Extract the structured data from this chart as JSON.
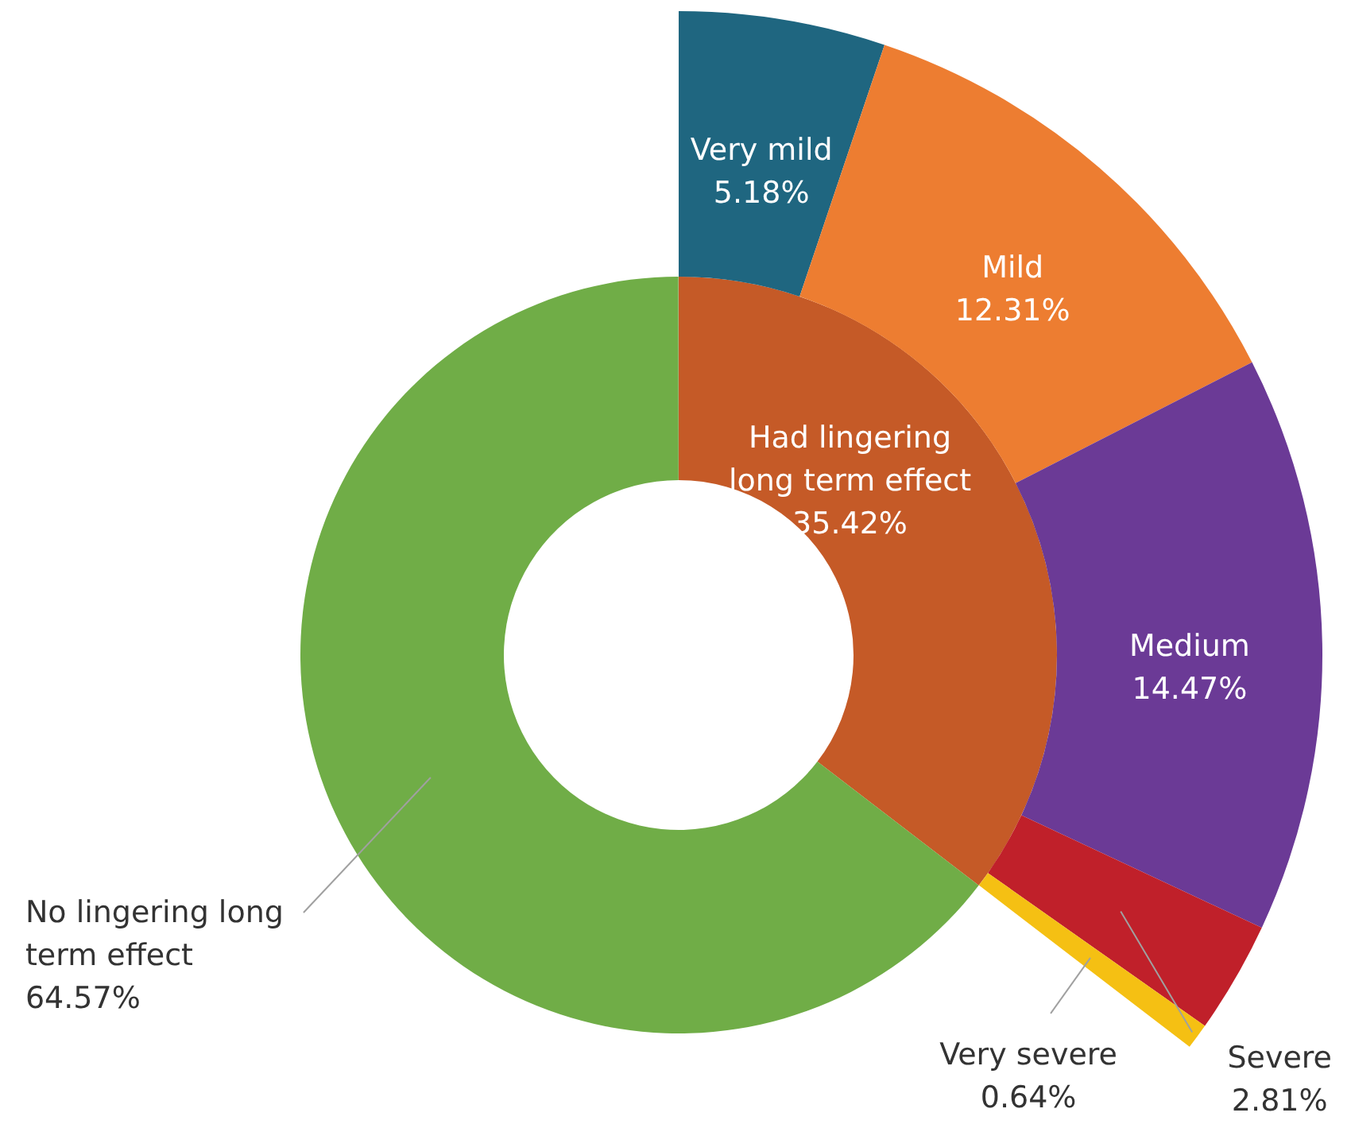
{
  "chart_data": [
    {
      "type": "donut",
      "categories": [
        "Had lingering long term effect",
        "No lingering long term effect"
      ],
      "values": [
        35.42,
        64.57
      ],
      "value_labels": [
        "35.42%",
        "64.57%"
      ],
      "colors": [
        "#c55a27",
        "#70ad47"
      ]
    },
    {
      "type": "donut",
      "categories": [
        "Very mild",
        "Mild",
        "Medium",
        "Severe",
        "Very severe"
      ],
      "values": [
        5.18,
        12.31,
        14.47,
        2.81,
        0.64
      ],
      "value_labels": [
        "5.18%",
        "12.31%",
        "14.47%",
        "2.81%",
        "0.64%"
      ],
      "colors": [
        "#1f6680",
        "#ed7d31",
        "#6b3a96",
        "#c0202a",
        "#f5c013"
      ]
    }
  ]
}
